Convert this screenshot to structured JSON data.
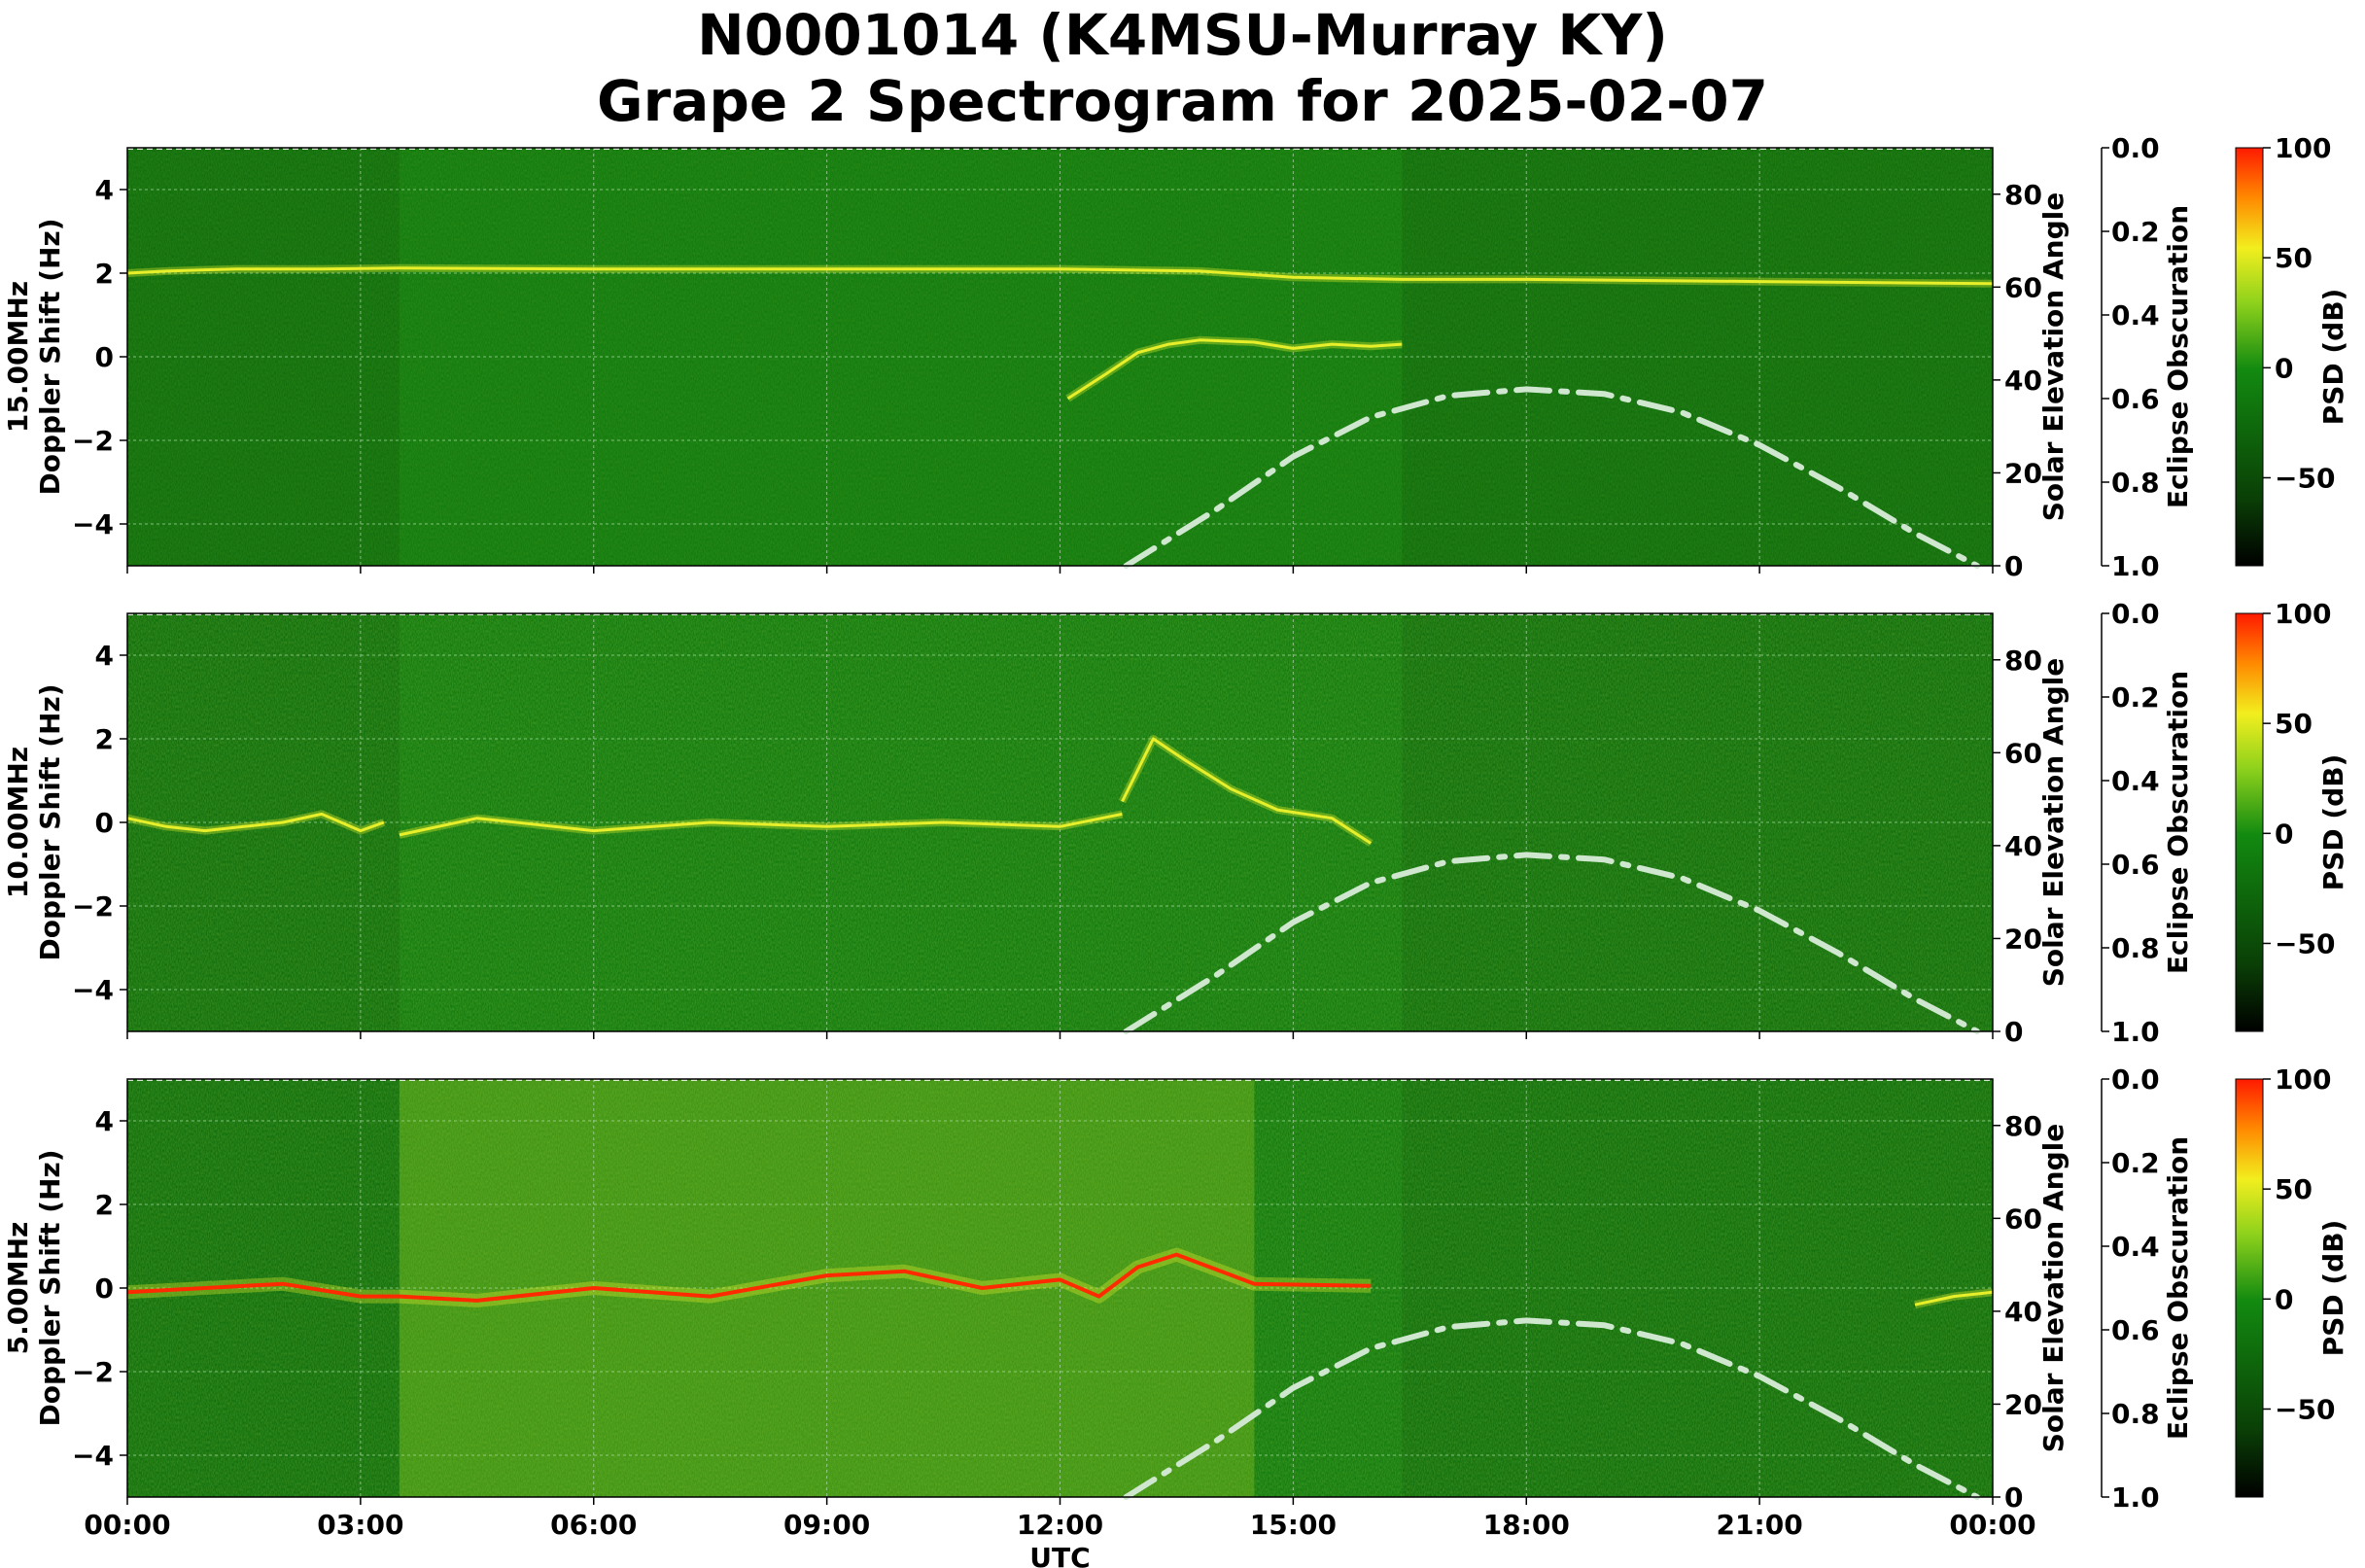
{
  "title_line1": "N0001014 (K4MSU-Murray KY)",
  "title_line2": "Grape 2 Spectrogram for 2025-02-07",
  "colors": {
    "spectrogram_base": "#117a0d",
    "spectrogram_quiet": "#0f6e0b",
    "signal_yellow": "#e6ef2a",
    "signal_red": "#ff2a00",
    "solar_curve": "#cfe6cf",
    "grid": "#b7d8b4"
  },
  "chart_data": [
    {
      "type": "heatmap",
      "panel_label": "15.00MHz",
      "ylabel": "Doppler Shift (Hz)",
      "xlabel": "",
      "ylim": [
        -5,
        5
      ],
      "yticks": [
        4,
        2,
        0,
        -2,
        -4
      ],
      "xlim": [
        "00:00",
        "24:00"
      ],
      "xticks": [
        "00:00",
        "03:00",
        "06:00",
        "09:00",
        "12:00",
        "15:00",
        "18:00",
        "21:00",
        "00:00"
      ],
      "right_axis": {
        "label": "Solar Elevation Angle",
        "ylim": [
          0,
          90
        ],
        "ticks": [
          0,
          20,
          40,
          60,
          80
        ]
      },
      "eclipse_axis": {
        "label": "Eclipse Obscuration",
        "ylim": [
          0.0,
          1.0
        ],
        "ticks": [
          "0.0",
          "0.2",
          "0.4",
          "0.6",
          "0.8",
          "1.0"
        ]
      },
      "colorbar": {
        "label": "PSD (dB)",
        "range": [
          -90,
          100
        ],
        "ticks": [
          100,
          50,
          0,
          -50
        ],
        "tick_labels": [
          "100",
          "50",
          "0",
          "−50"
        ]
      },
      "daylight_hours": [
        3.5,
        16.4
      ],
      "solar_elevation": {
        "x_hours": [
          12.85,
          14.0,
          15.0,
          16.0,
          17.0,
          18.0,
          19.0,
          20.0,
          21.0,
          22.0,
          23.0,
          23.8
        ],
        "values": [
          0,
          12.0,
          23.5,
          32.0,
          36.6,
          38.0,
          37.0,
          33.0,
          26.0,
          17.0,
          7.0,
          0
        ]
      },
      "signal_traces": [
        {
          "name": "",
          "x_hours": [
            0,
            0.5,
            1.0,
            1.4,
            1.8,
            2.5,
            3.5,
            6,
            9,
            12,
            13.8,
            15,
            16.4,
            18,
            21,
            24
          ],
          "doppler_hz": [
            2.0,
            2.05,
            2.08,
            2.1,
            2.1,
            2.1,
            2.12,
            2.1,
            2.1,
            2.1,
            2.05,
            1.9,
            1.85,
            1.85,
            1.8,
            1.75
          ]
        },
        {
          "name": "",
          "x_hours": [
            12.1,
            12.6,
            13.0,
            13.4,
            13.8,
            14.5,
            15.0,
            15.5,
            16.0,
            16.4
          ],
          "doppler_hz": [
            -1.0,
            -0.4,
            0.1,
            0.3,
            0.4,
            0.35,
            0.2,
            0.3,
            0.25,
            0.3
          ]
        }
      ]
    },
    {
      "type": "heatmap",
      "panel_label": "10.00MHz",
      "ylabel": "Doppler Shift (Hz)",
      "xlabel": "",
      "ylim": [
        -5,
        5
      ],
      "yticks": [
        4,
        2,
        0,
        -2,
        -4
      ],
      "xlim": [
        "00:00",
        "24:00"
      ],
      "xticks": [
        "00:00",
        "03:00",
        "06:00",
        "09:00",
        "12:00",
        "15:00",
        "18:00",
        "21:00",
        "00:00"
      ],
      "right_axis": {
        "label": "Solar Elevation Angle",
        "ylim": [
          0,
          90
        ],
        "ticks": [
          0,
          20,
          40,
          60,
          80
        ]
      },
      "eclipse_axis": {
        "label": "Eclipse Obscuration",
        "ylim": [
          0.0,
          1.0
        ],
        "ticks": [
          "0.0",
          "0.2",
          "0.4",
          "0.6",
          "0.8",
          "1.0"
        ]
      },
      "colorbar": {
        "label": "PSD (dB)",
        "range": [
          -90,
          100
        ],
        "ticks": [
          100,
          50,
          0,
          -50
        ],
        "tick_labels": [
          "100",
          "50",
          "0",
          "−50"
        ]
      },
      "daylight_hours": [
        3.5,
        16.4
      ],
      "solar_elevation": {
        "x_hours": [
          12.85,
          14.0,
          15.0,
          16.0,
          17.0,
          18.0,
          19.0,
          20.0,
          21.0,
          22.0,
          23.0,
          23.8
        ],
        "values": [
          0,
          12.0,
          23.5,
          32.0,
          36.6,
          38.0,
          37.0,
          33.0,
          26.0,
          17.0,
          7.0,
          0
        ]
      },
      "signal_traces": [
        {
          "name": "",
          "x_hours": [
            0,
            0.5,
            1.0,
            1.5,
            2.0,
            2.5,
            3.0,
            3.3
          ],
          "doppler_hz": [
            0.1,
            -0.1,
            -0.2,
            -0.1,
            0.0,
            0.2,
            -0.2,
            0.0
          ]
        },
        {
          "name": "",
          "x_hours": [
            3.5,
            4.5,
            6.0,
            7.5,
            9.0,
            10.5,
            12.0,
            12.8
          ],
          "doppler_hz": [
            -0.3,
            0.1,
            -0.2,
            0.0,
            -0.1,
            0.0,
            -0.1,
            0.2
          ]
        },
        {
          "name": "",
          "x_hours": [
            12.8,
            13.2,
            13.6,
            14.2,
            14.8,
            15.5,
            16.0
          ],
          "doppler_hz": [
            0.5,
            2.0,
            1.5,
            0.8,
            0.3,
            0.1,
            -0.5
          ]
        }
      ]
    },
    {
      "type": "heatmap",
      "panel_label": "5.00MHz",
      "ylabel": "Doppler Shift (Hz)",
      "xlabel": "UTC",
      "ylim": [
        -5,
        5
      ],
      "yticks": [
        4,
        2,
        0,
        -2,
        -4
      ],
      "xlim": [
        "00:00",
        "24:00"
      ],
      "xticks": [
        "00:00",
        "03:00",
        "06:00",
        "09:00",
        "12:00",
        "15:00",
        "18:00",
        "21:00",
        "00:00"
      ],
      "right_axis": {
        "label": "Solar Elevation Angle",
        "ylim": [
          0,
          90
        ],
        "ticks": [
          0,
          20,
          40,
          60,
          80
        ]
      },
      "eclipse_axis": {
        "label": "Eclipse Obscuration",
        "ylim": [
          0.0,
          1.0
        ],
        "ticks": [
          "0.0",
          "0.2",
          "0.4",
          "0.6",
          "0.8",
          "1.0"
        ]
      },
      "colorbar": {
        "label": "PSD (dB)",
        "range": [
          -90,
          100
        ],
        "ticks": [
          100,
          50,
          0,
          -50
        ],
        "tick_labels": [
          "100",
          "50",
          "0",
          "−50"
        ]
      },
      "daylight_hours": [
        3.5,
        16.4
      ],
      "solar_elevation": {
        "x_hours": [
          12.85,
          14.0,
          15.0,
          16.0,
          17.0,
          18.0,
          19.0,
          20.0,
          21.0,
          22.0,
          23.0,
          23.8
        ],
        "values": [
          0,
          12.0,
          23.5,
          32.0,
          36.6,
          38.0,
          37.0,
          33.0,
          26.0,
          17.0,
          7.0,
          0
        ]
      },
      "signal_traces": [
        {
          "name": "",
          "x_hours": [
            0,
            1,
            2,
            3,
            3.5,
            4.5,
            6,
            7.5,
            9.0,
            10.0,
            11.0,
            12.0,
            12.5,
            13.0,
            13.5,
            14.5,
            16.0
          ],
          "doppler_hz": [
            -0.1,
            0.0,
            0.1,
            -0.2,
            -0.2,
            -0.3,
            0.0,
            -0.2,
            0.3,
            0.4,
            0.0,
            0.2,
            -0.2,
            0.5,
            0.8,
            0.1,
            0.05
          ]
        },
        {
          "name": "",
          "x_hours": [
            23.0,
            23.5,
            24.0
          ],
          "doppler_hz": [
            -0.4,
            -0.2,
            -0.1
          ]
        }
      ]
    }
  ]
}
